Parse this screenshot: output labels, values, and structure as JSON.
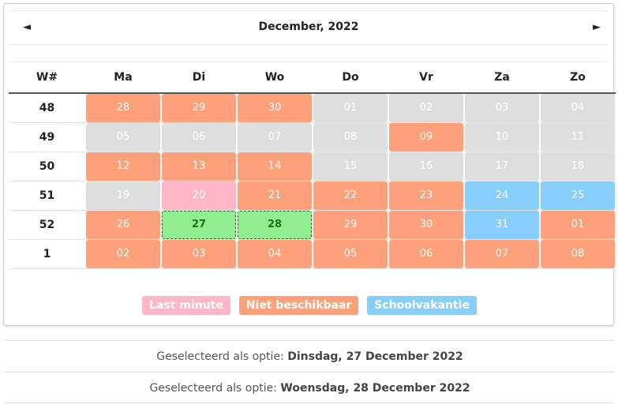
{
  "calendar": {
    "title": "December, 2022",
    "prev_icon": "◄",
    "next_icon": "►",
    "headers": [
      "W#",
      "Ma",
      "Di",
      "Wo",
      "Do",
      "Vr",
      "Za",
      "Zo"
    ],
    "weeks": [
      {
        "wk": "48",
        "days": [
          [
            "28",
            "orange"
          ],
          [
            "29",
            "orange"
          ],
          [
            "30",
            "orange"
          ],
          [
            "01",
            "gray"
          ],
          [
            "02",
            "gray"
          ],
          [
            "03",
            "gray"
          ],
          [
            "04",
            "gray"
          ]
        ]
      },
      {
        "wk": "49",
        "days": [
          [
            "05",
            "gray"
          ],
          [
            "06",
            "gray"
          ],
          [
            "07",
            "gray"
          ],
          [
            "08",
            "gray"
          ],
          [
            "09",
            "orange"
          ],
          [
            "10",
            "gray"
          ],
          [
            "11",
            "gray"
          ]
        ]
      },
      {
        "wk": "50",
        "days": [
          [
            "12",
            "orange"
          ],
          [
            "13",
            "orange"
          ],
          [
            "14",
            "orange"
          ],
          [
            "15",
            "gray"
          ],
          [
            "16",
            "gray"
          ],
          [
            "17",
            "gray"
          ],
          [
            "18",
            "gray"
          ]
        ]
      },
      {
        "wk": "51",
        "days": [
          [
            "19",
            "gray"
          ],
          [
            "20",
            "pink"
          ],
          [
            "21",
            "orange"
          ],
          [
            "22",
            "orange"
          ],
          [
            "23",
            "orange"
          ],
          [
            "24",
            "blue"
          ],
          [
            "25",
            "blue"
          ]
        ]
      },
      {
        "wk": "52",
        "days": [
          [
            "26",
            "orange"
          ],
          [
            "27",
            "green"
          ],
          [
            "28",
            "green"
          ],
          [
            "29",
            "orange"
          ],
          [
            "30",
            "orange"
          ],
          [
            "31",
            "blue"
          ],
          [
            "01",
            "orange"
          ]
        ]
      },
      {
        "wk": "1",
        "days": [
          [
            "02",
            "orange"
          ],
          [
            "03",
            "orange"
          ],
          [
            "04",
            "orange"
          ],
          [
            "05",
            "orange"
          ],
          [
            "06",
            "orange"
          ],
          [
            "07",
            "orange"
          ],
          [
            "08",
            "orange"
          ]
        ]
      }
    ]
  },
  "legend": {
    "last_minute": "Last minute",
    "niet_beschikbaar": "Niet beschikbaar",
    "schoolvakantie": "Schoolvakantie"
  },
  "selections": [
    {
      "prefix": "Geselecteerd als optie: ",
      "date": "Dinsdag, 27 December 2022"
    },
    {
      "prefix": "Geselecteerd als optie: ",
      "date": "Woensdag, 28 December 2022"
    }
  ],
  "colors": {
    "unavailable": "#fea07a",
    "past": "#dedede",
    "last_minute": "#ffb6c6",
    "school_holiday": "#87cefa",
    "selected": "#90ee90"
  }
}
